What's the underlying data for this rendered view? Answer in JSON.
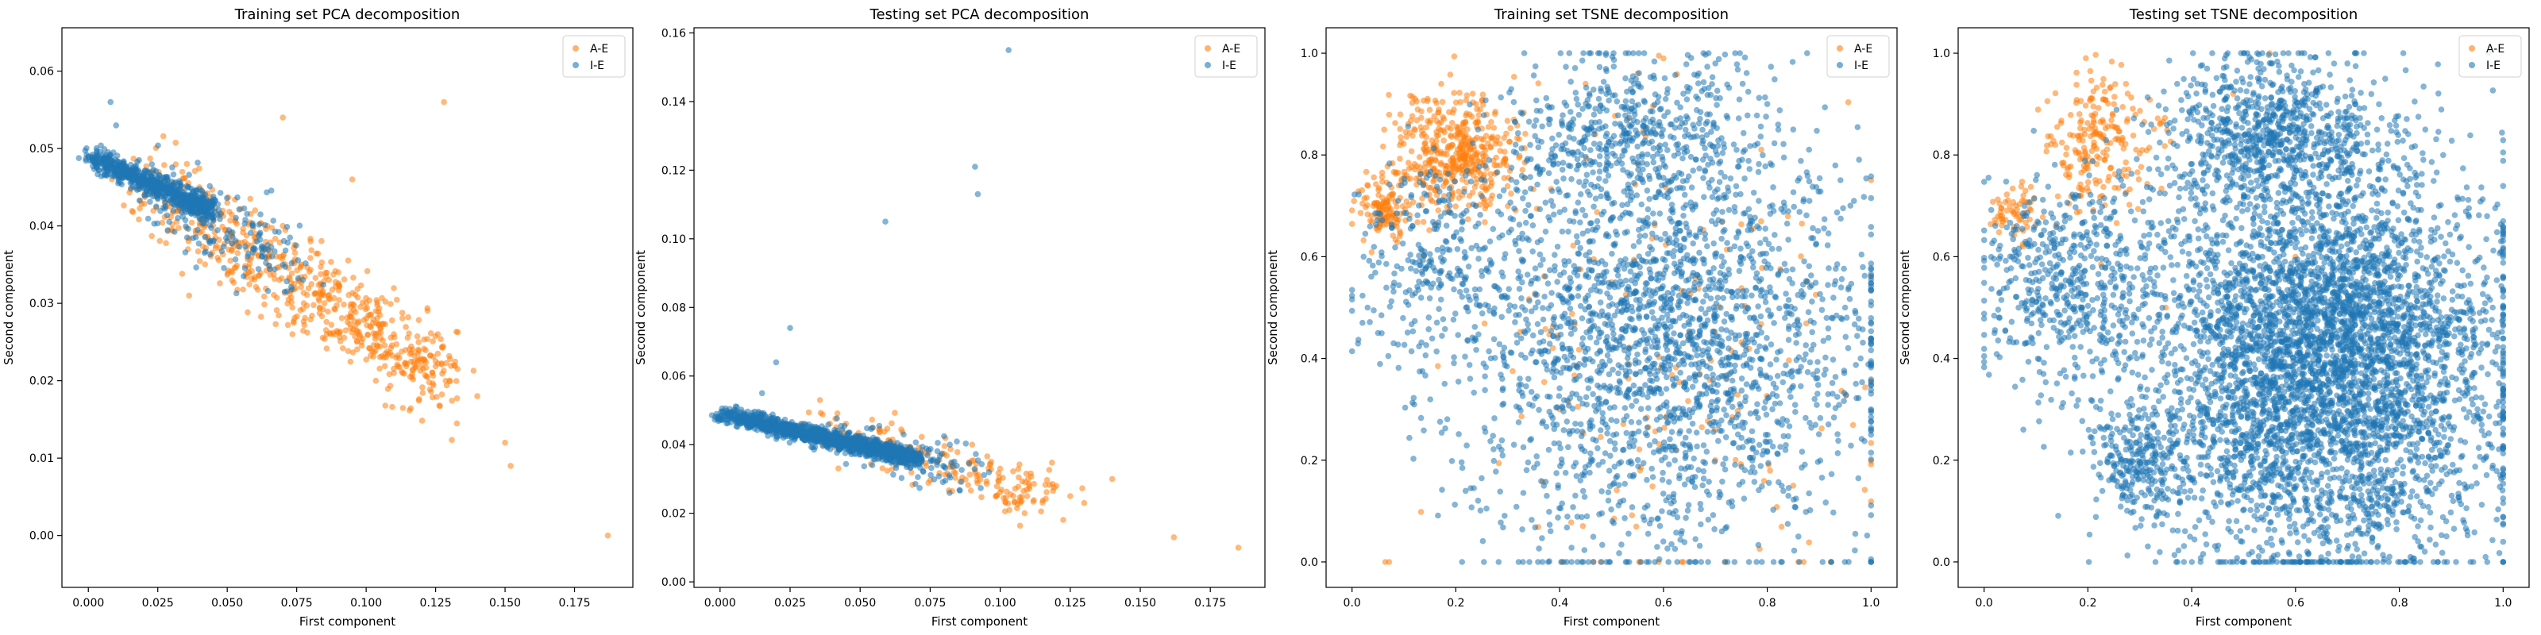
{
  "colors": {
    "A-E": "#ff7f0e",
    "I-E": "#1f77b4"
  },
  "chart_data": [
    {
      "type": "scatter",
      "title": "Training set PCA decomposition",
      "xlabel": "First component",
      "ylabel": "Second component",
      "xlim": [
        -0.0095,
        0.196
      ],
      "ylim": [
        -0.0067,
        0.0656
      ],
      "xticks": [
        0.0,
        0.025,
        0.05,
        0.075,
        0.1,
        0.125,
        0.15,
        0.175
      ],
      "xtick_labels": [
        "0.000",
        "0.025",
        "0.050",
        "0.075",
        "0.100",
        "0.125",
        "0.150",
        "0.175"
      ],
      "yticks": [
        0.0,
        0.01,
        0.02,
        0.03,
        0.04,
        0.05,
        0.06
      ],
      "ytick_labels": [
        "0.00",
        "0.01",
        "0.02",
        "0.03",
        "0.04",
        "0.05",
        "0.06"
      ],
      "legend": {
        "position": "top-right",
        "entries": [
          "A-E",
          "I-E"
        ]
      },
      "series": [
        {
          "name": "A-E",
          "points": [
            [
              0.04,
              0.045
            ],
            [
              0.05,
              0.043
            ],
            [
              0.06,
              0.042
            ],
            [
              0.07,
              0.04
            ],
            [
              0.08,
              0.038
            ],
            [
              0.09,
              0.034
            ],
            [
              0.1,
              0.03
            ],
            [
              0.11,
              0.026
            ],
            [
              0.12,
              0.022
            ],
            [
              0.13,
              0.02
            ],
            [
              0.14,
              0.018
            ],
            [
              0.15,
              0.012
            ],
            [
              0.152,
              0.009
            ],
            [
              0.187,
              0.0
            ],
            [
              0.128,
              0.056
            ],
            [
              0.07,
              0.054
            ],
            [
              0.095,
              0.046
            ],
            [
              0.06,
              0.038
            ],
            [
              0.085,
              0.03
            ],
            [
              0.11,
              0.021
            ]
          ]
        },
        {
          "name": "I-E",
          "points": [
            [
              0.0,
              0.049
            ],
            [
              0.005,
              0.048
            ],
            [
              0.01,
              0.047
            ],
            [
              0.02,
              0.045
            ],
            [
              0.03,
              0.043
            ],
            [
              0.04,
              0.041
            ],
            [
              0.05,
              0.039
            ],
            [
              0.06,
              0.037
            ],
            [
              0.008,
              0.056
            ],
            [
              0.01,
              0.053
            ],
            [
              0.07,
              0.035
            ],
            [
              0.045,
              0.038
            ]
          ]
        }
      ],
      "clusters": [
        {
          "series": "I-E",
          "type": "band",
          "from": [
            0.0,
            0.049
          ],
          "to": [
            0.045,
            0.042
          ],
          "spread": [
            0.003,
            0.0008
          ],
          "count": 700
        },
        {
          "series": "A-E",
          "type": "band",
          "from": [
            0.02,
            0.046
          ],
          "to": [
            0.13,
            0.02
          ],
          "spread": [
            0.012,
            0.003
          ],
          "count": 650
        },
        {
          "series": "I-E",
          "type": "band",
          "from": [
            0.02,
            0.045
          ],
          "to": [
            0.075,
            0.035
          ],
          "spread": [
            0.008,
            0.0025
          ],
          "count": 160
        }
      ]
    },
    {
      "type": "scatter",
      "title": "Testing set PCA decomposition",
      "xlabel": "First component",
      "ylabel": "Second component",
      "xlim": [
        -0.0093,
        0.1945
      ],
      "ylim": [
        -0.0016,
        0.1615
      ],
      "xticks": [
        0.0,
        0.025,
        0.05,
        0.075,
        0.1,
        0.125,
        0.15,
        0.175
      ],
      "xtick_labels": [
        "0.000",
        "0.025",
        "0.050",
        "0.075",
        "0.100",
        "0.125",
        "0.150",
        "0.175"
      ],
      "yticks": [
        0.0,
        0.02,
        0.04,
        0.06,
        0.08,
        0.1,
        0.12,
        0.14,
        0.16
      ],
      "ytick_labels": [
        "0.00",
        "0.02",
        "0.04",
        "0.06",
        "0.08",
        "0.10",
        "0.12",
        "0.14",
        "0.16"
      ],
      "legend": {
        "position": "top-right",
        "entries": [
          "A-E",
          "I-E"
        ]
      },
      "series": [
        {
          "name": "A-E",
          "points": [
            [
              0.11,
              0.03
            ],
            [
              0.12,
              0.028
            ],
            [
              0.13,
              0.023
            ],
            [
              0.14,
              0.03
            ],
            [
              0.162,
              0.013
            ],
            [
              0.185,
              0.01
            ],
            [
              0.1,
              0.033
            ],
            [
              0.09,
              0.04
            ],
            [
              0.125,
              0.025
            ]
          ]
        },
        {
          "name": "I-E",
          "points": [
            [
              0.103,
              0.155
            ],
            [
              0.091,
              0.121
            ],
            [
              0.092,
              0.113
            ],
            [
              0.059,
              0.105
            ],
            [
              0.025,
              0.074
            ],
            [
              0.02,
              0.064
            ],
            [
              0.015,
              0.055
            ]
          ]
        }
      ],
      "clusters": [
        {
          "series": "I-E",
          "type": "band",
          "from": [
            0.0,
            0.049
          ],
          "to": [
            0.07,
            0.036
          ],
          "spread": [
            0.004,
            0.0012
          ],
          "count": 1400
        },
        {
          "series": "A-E",
          "type": "band",
          "from": [
            0.03,
            0.046
          ],
          "to": [
            0.12,
            0.025
          ],
          "spread": [
            0.01,
            0.004
          ],
          "count": 220
        },
        {
          "series": "I-E",
          "type": "band",
          "from": [
            0.03,
            0.043
          ],
          "to": [
            0.09,
            0.032
          ],
          "spread": [
            0.008,
            0.003
          ],
          "count": 140
        }
      ]
    },
    {
      "type": "scatter",
      "title": "Training set TSNE decomposition",
      "xlabel": "First component",
      "ylabel": "Second component",
      "xlim": [
        -0.05,
        1.05
      ],
      "ylim": [
        -0.05,
        1.05
      ],
      "xticks": [
        0.0,
        0.2,
        0.4,
        0.6,
        0.8,
        1.0
      ],
      "xtick_labels": [
        "0.0",
        "0.2",
        "0.4",
        "0.6",
        "0.8",
        "1.0"
      ],
      "yticks": [
        0.0,
        0.2,
        0.4,
        0.6,
        0.8,
        1.0
      ],
      "ytick_labels": [
        "0.0",
        "0.2",
        "0.4",
        "0.6",
        "0.8",
        "1.0"
      ],
      "legend": {
        "position": "top-right",
        "entries": [
          "A-E",
          "I-E"
        ]
      },
      "series": [
        {
          "name": "A-E",
          "points": [
            [
              0.45,
              0.94
            ],
            [
              0.55,
              0.96
            ],
            [
              0.6,
              0.99
            ],
            [
              0.4,
              0.3
            ],
            [
              0.7,
              0.2
            ],
            [
              0.85,
              0.15
            ],
            [
              0.5,
              0.55
            ],
            [
              0.65,
              0.45
            ]
          ]
        },
        {
          "name": "I-E",
          "points": [
            [
              0.02,
              0.47
            ],
            [
              0.05,
              0.45
            ],
            [
              0.08,
              0.43
            ],
            [
              0.03,
              0.5
            ],
            [
              0.95,
              0.5
            ],
            [
              0.98,
              0.4
            ],
            [
              0.8,
              0.9
            ],
            [
              0.85,
              0.85
            ],
            [
              0.7,
              0.98
            ]
          ]
        }
      ],
      "clusters": [
        {
          "series": "I-E",
          "type": "blob",
          "center": [
            0.6,
            0.45
          ],
          "spread": [
            0.2,
            0.22
          ],
          "count": 2400
        },
        {
          "series": "I-E",
          "type": "blob",
          "center": [
            0.55,
            0.85
          ],
          "spread": [
            0.12,
            0.07
          ],
          "count": 400
        },
        {
          "series": "I-E",
          "type": "blob",
          "center": [
            0.15,
            0.6
          ],
          "spread": [
            0.07,
            0.1
          ],
          "count": 220
        },
        {
          "series": "A-E",
          "type": "blob",
          "center": [
            0.2,
            0.8
          ],
          "spread": [
            0.06,
            0.06
          ],
          "count": 450
        },
        {
          "series": "A-E",
          "type": "blob",
          "center": [
            0.06,
            0.69
          ],
          "spread": [
            0.025,
            0.03
          ],
          "count": 120
        },
        {
          "series": "A-E",
          "type": "blob",
          "center": [
            0.58,
            0.4
          ],
          "spread": [
            0.22,
            0.25
          ],
          "count": 160
        }
      ]
    },
    {
      "type": "scatter",
      "title": "Testing set TSNE decomposition",
      "xlabel": "First component",
      "ylabel": "Second component",
      "xlim": [
        -0.05,
        1.05
      ],
      "ylim": [
        -0.05,
        1.05
      ],
      "xticks": [
        0.0,
        0.2,
        0.4,
        0.6,
        0.8,
        1.0
      ],
      "xtick_labels": [
        "0.0",
        "0.2",
        "0.4",
        "0.6",
        "0.8",
        "1.0"
      ],
      "yticks": [
        0.0,
        0.2,
        0.4,
        0.6,
        0.8,
        1.0
      ],
      "ytick_labels": [
        "0.0",
        "0.2",
        "0.4",
        "0.6",
        "0.8",
        "1.0"
      ],
      "legend": {
        "position": "top-right",
        "entries": [
          "A-E",
          "I-E"
        ]
      },
      "series": [
        {
          "name": "A-E",
          "points": [
            [
              0.55,
              1.0
            ],
            [
              0.48,
              0.92
            ],
            [
              0.35,
              0.5
            ],
            [
              0.6,
              0.6
            ]
          ]
        },
        {
          "name": "I-E",
          "points": [
            [
              0.02,
              0.45
            ],
            [
              0.05,
              0.44
            ],
            [
              0.08,
              0.43
            ],
            [
              0.03,
              0.48
            ],
            [
              0.98,
              0.5
            ],
            [
              0.99,
              0.45
            ],
            [
              0.85,
              0.85
            ],
            [
              0.7,
              0.98
            ]
          ]
        }
      ],
      "clusters": [
        {
          "series": "I-E",
          "type": "blob",
          "center": [
            0.65,
            0.4
          ],
          "spread": [
            0.17,
            0.2
          ],
          "count": 4800
        },
        {
          "series": "I-E",
          "type": "blob",
          "center": [
            0.55,
            0.85
          ],
          "spread": [
            0.1,
            0.07
          ],
          "count": 700
        },
        {
          "series": "I-E",
          "type": "blob",
          "center": [
            0.15,
            0.55
          ],
          "spread": [
            0.08,
            0.1
          ],
          "count": 500
        },
        {
          "series": "I-E",
          "type": "blob",
          "center": [
            0.3,
            0.2
          ],
          "spread": [
            0.05,
            0.05
          ],
          "count": 250
        },
        {
          "series": "A-E",
          "type": "blob",
          "center": [
            0.22,
            0.82
          ],
          "spread": [
            0.05,
            0.07
          ],
          "count": 220
        },
        {
          "series": "A-E",
          "type": "blob",
          "center": [
            0.06,
            0.69
          ],
          "spread": [
            0.025,
            0.03
          ],
          "count": 60
        }
      ]
    }
  ]
}
